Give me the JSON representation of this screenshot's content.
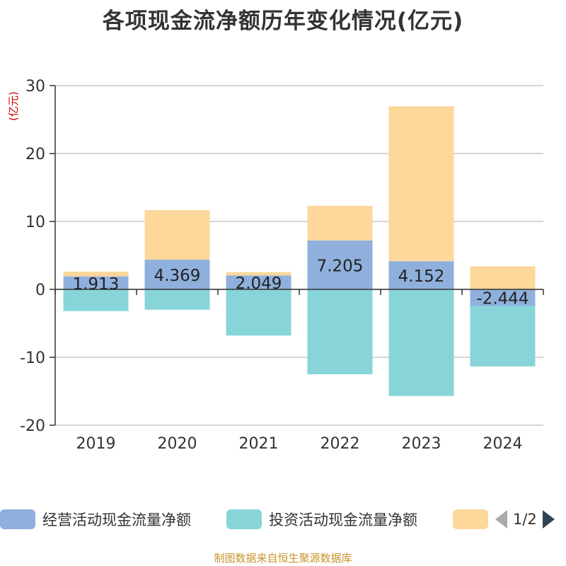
{
  "chart_data": {
    "type": "bar",
    "stacked": true,
    "title": "各项现金流净额历年变化情况(亿元)",
    "ylabel": "(亿元)",
    "xlabel": "",
    "categories": [
      "2019",
      "2020",
      "2021",
      "2022",
      "2023",
      "2024"
    ],
    "ylim": [
      -20,
      30
    ],
    "yticks": [
      -20,
      -10,
      0,
      10,
      20,
      30
    ],
    "grid": true,
    "series": [
      {
        "name": "经营活动现金流量净额",
        "color": "#8fb0dd",
        "values": [
          1.913,
          4.369,
          2.049,
          7.205,
          4.152,
          -2.444
        ],
        "labels": [
          "1.913",
          "4.369",
          "2.049",
          "7.205",
          "4.152",
          "-2.444"
        ]
      },
      {
        "name": "投资活动现金流量净额",
        "color": "#87d5d8",
        "values": [
          -3.2,
          -3.0,
          -6.8,
          -12.5,
          -15.7,
          -8.9
        ]
      },
      {
        "name": "",
        "color": "#fdd89a",
        "values": [
          0.7,
          7.3,
          0.5,
          5.1,
          22.8,
          3.4
        ]
      }
    ],
    "legend": {
      "position": "bottom",
      "page": "1/2"
    }
  },
  "source": "制图数据来自恒生聚源数据库"
}
